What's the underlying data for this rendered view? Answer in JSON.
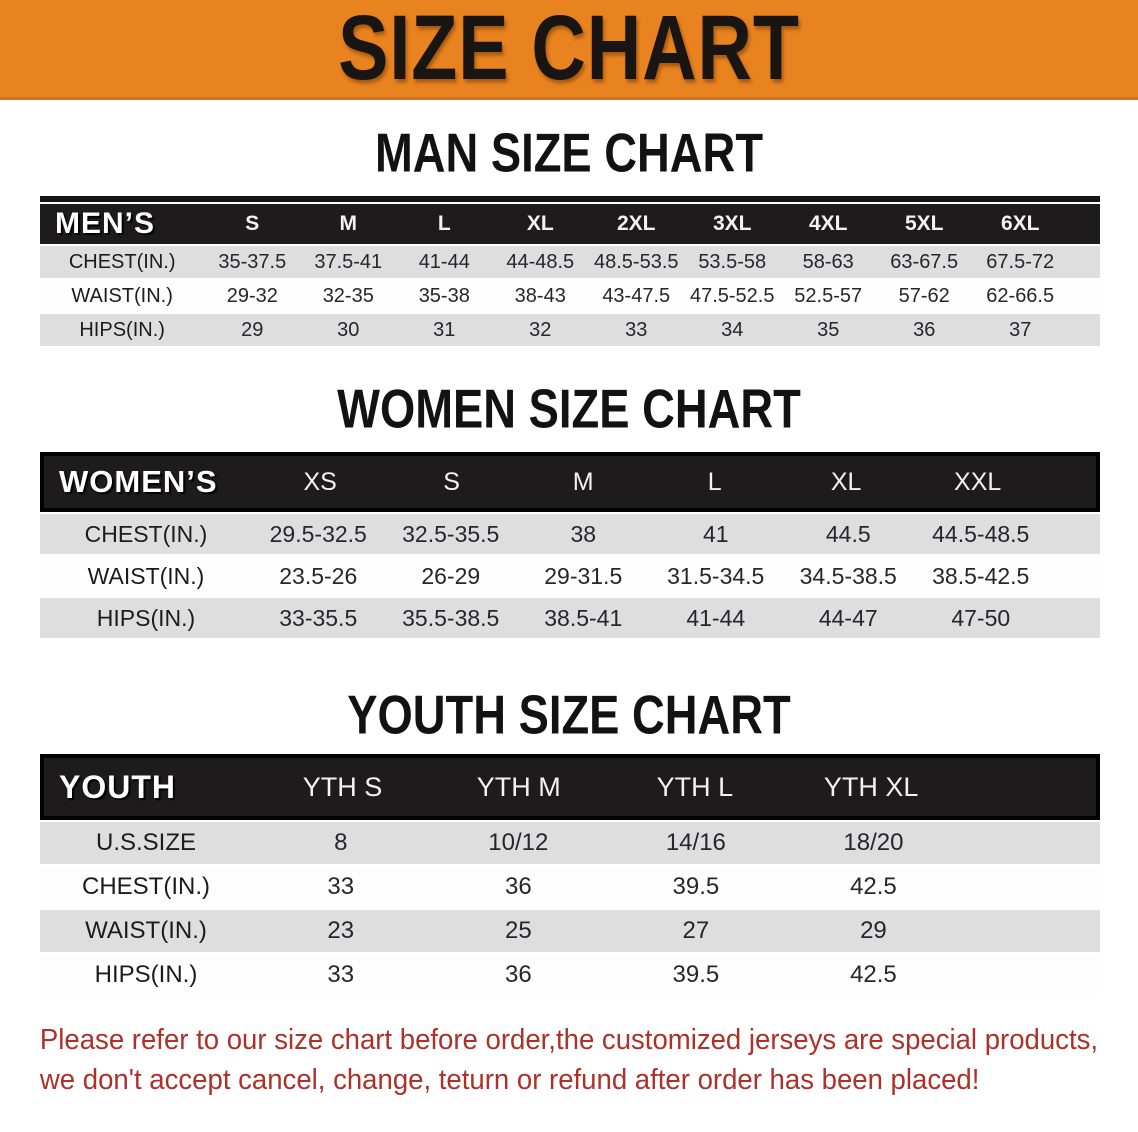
{
  "banner": {
    "title": "SIZE CHART",
    "bg_color": "#E8831F",
    "text_color": "#181512"
  },
  "sections": [
    {
      "id": "men",
      "heading": "MAN SIZE CHART",
      "header_label": "MEN’S",
      "columns": [
        "S",
        "M",
        "L",
        "XL",
        "2XL",
        "3XL",
        "4XL",
        "5XL",
        "6XL"
      ],
      "rows": [
        {
          "label": "CHEST(IN.)",
          "values": [
            "35-37.5",
            "37.5-41",
            "41-44",
            "44-48.5",
            "48.5-53.5",
            "53.5-58",
            "58-63",
            "63-67.5",
            "67.5-72"
          ]
        },
        {
          "label": "WAIST(IN.)",
          "values": [
            "29-32",
            "32-35",
            "35-38",
            "38-43",
            "43-47.5",
            "47.5-52.5",
            "52.5-57",
            "57-62",
            "62-66.5"
          ]
        },
        {
          "label": "HIPS(IN.)",
          "values": [
            "29",
            "30",
            "31",
            "32",
            "33",
            "34",
            "35",
            "36",
            "37"
          ]
        }
      ]
    },
    {
      "id": "women",
      "heading": "WOMEN SIZE CHART",
      "header_label": "WOMEN’S",
      "columns": [
        "XS",
        "S",
        "M",
        "L",
        "XL",
        "XXL"
      ],
      "rows": [
        {
          "label": "CHEST(IN.)",
          "values": [
            "29.5-32.5",
            "32.5-35.5",
            "38",
            "41",
            "44.5",
            "44.5-48.5"
          ]
        },
        {
          "label": "WAIST(IN.)",
          "values": [
            "23.5-26",
            "26-29",
            "29-31.5",
            "31.5-34.5",
            "34.5-38.5",
            "38.5-42.5"
          ]
        },
        {
          "label": "HIPS(IN.)",
          "values": [
            "33-35.5",
            "35.5-38.5",
            "38.5-41",
            "41-44",
            "44-47",
            "47-50"
          ]
        }
      ]
    },
    {
      "id": "youth",
      "heading": "YOUTH SIZE CHART",
      "header_label": "YOUTH",
      "columns": [
        "YTH S",
        "YTH M",
        "YTH L",
        "YTH XL"
      ],
      "rows": [
        {
          "label": "U.S.SIZE",
          "values": [
            "8",
            "10/12",
            "14/16",
            "18/20"
          ]
        },
        {
          "label": "CHEST(IN.)",
          "values": [
            "33",
            "36",
            "39.5",
            "42.5"
          ]
        },
        {
          "label": "WAIST(IN.)",
          "values": [
            "23",
            "25",
            "27",
            "29"
          ]
        },
        {
          "label": "HIPS(IN.)",
          "values": [
            "33",
            "36",
            "39.5",
            "42.5"
          ]
        }
      ]
    }
  ],
  "disclaimer": {
    "line1": "Please refer to our size chart before order,the customized jerseys are special products,",
    "line2": "we don't accept cancel, change, teturn or refund after order has been placed!",
    "color": "#AD3129"
  },
  "colors": {
    "banner_orange": "#E8831F",
    "table_header_bg": "#1D1B1B",
    "stripe_gray": "#DEDEDE",
    "row_white": "#FEFEFE"
  }
}
